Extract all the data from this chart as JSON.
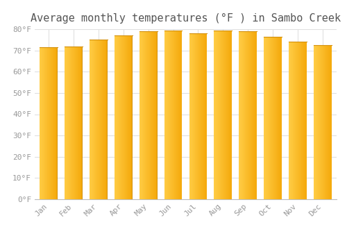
{
  "title": "Average monthly temperatures (°F ) in Sambo Creek",
  "months": [
    "Jan",
    "Feb",
    "Mar",
    "Apr",
    "May",
    "Jun",
    "Jul",
    "Aug",
    "Sep",
    "Oct",
    "Nov",
    "Dec"
  ],
  "values": [
    71.5,
    72.0,
    75.0,
    77.0,
    79.0,
    79.5,
    78.0,
    79.5,
    79.0,
    76.5,
    74.0,
    72.5
  ],
  "bar_color_left": "#FFCC44",
  "bar_color_right": "#F5A800",
  "bar_edge_color": "#D4900A",
  "background_color": "#FFFFFF",
  "grid_color": "#E0E0E0",
  "ylim": [
    0,
    80
  ],
  "ytick_interval": 10,
  "title_fontsize": 11,
  "tick_fontsize": 8,
  "tick_label_color": "#999999",
  "title_color": "#555555"
}
